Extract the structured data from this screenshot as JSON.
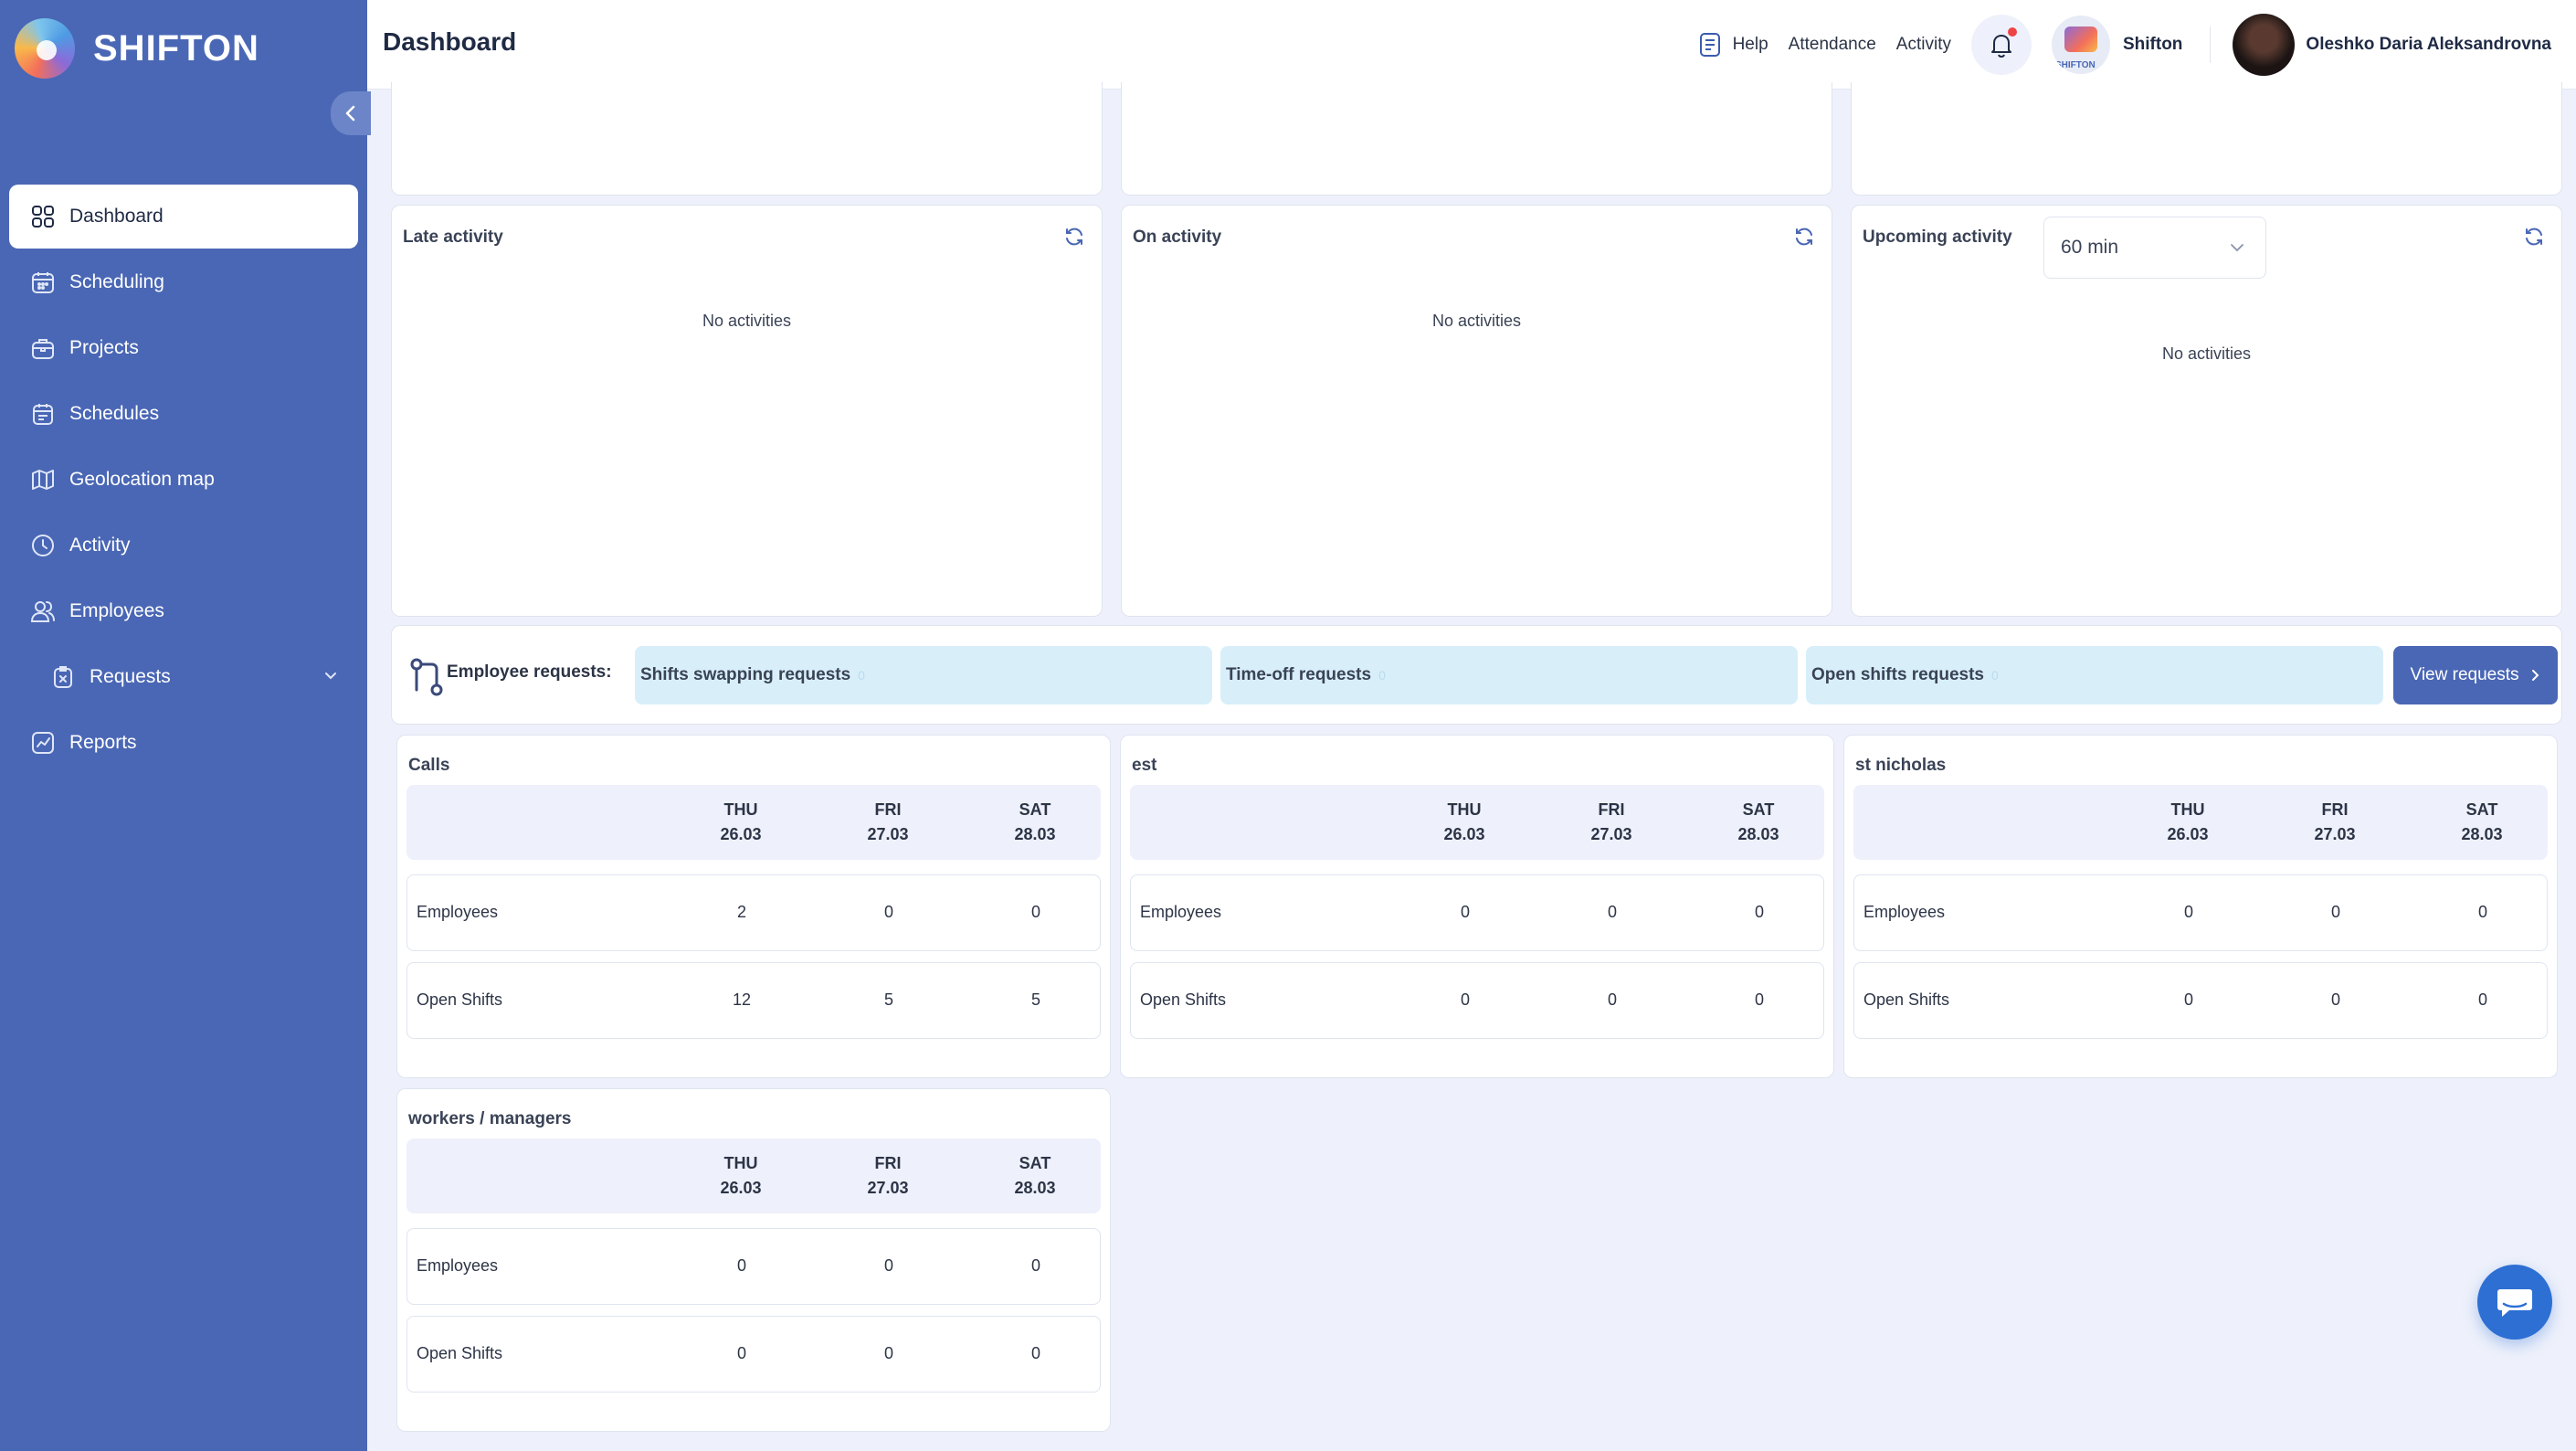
{
  "brand": {
    "name": "SHIFTON"
  },
  "sidebar": {
    "items": [
      {
        "label": "Dashboard",
        "icon": "grid-icon",
        "active": true
      },
      {
        "label": "Scheduling",
        "icon": "calendar-icon"
      },
      {
        "label": "Projects",
        "icon": "briefcase-icon"
      },
      {
        "label": "Schedules",
        "icon": "schedule-icon"
      },
      {
        "label": "Geolocation map",
        "icon": "map-icon"
      },
      {
        "label": "Activity",
        "icon": "clock-icon"
      },
      {
        "label": "Employees",
        "icon": "users-icon"
      },
      {
        "label": "Requests",
        "icon": "request-icon",
        "sub": true,
        "expandable": true
      },
      {
        "label": "Reports",
        "icon": "chart-icon"
      }
    ]
  },
  "header": {
    "title": "Dashboard",
    "help": "Help",
    "attendance": "Attendance",
    "activity": "Activity",
    "company": "Shifton",
    "company_avatar_text": "SHIFTON",
    "user": "Oleshko Daria Aleksandrovna"
  },
  "activity_cards": {
    "late": {
      "title": "Late activity",
      "empty": "No activities"
    },
    "on": {
      "title": "On activity",
      "empty": "No activities"
    },
    "upcoming": {
      "title": "Upcoming activity",
      "empty": "No activities",
      "interval": "60 min"
    }
  },
  "requests": {
    "label": "Employee requests:",
    "swap": {
      "label": "Shifts swapping requests",
      "count": "0"
    },
    "timeoff": {
      "label": "Time-off requests",
      "count": "0"
    },
    "open": {
      "label": "Open shifts requests",
      "count": "0"
    },
    "view_button": "View requests"
  },
  "days": [
    {
      "dow": "THU",
      "date": "26.03"
    },
    {
      "dow": "FRI",
      "date": "27.03"
    },
    {
      "dow": "SAT",
      "date": "28.03"
    }
  ],
  "stats": [
    {
      "title": "Calls",
      "employees": [
        "2",
        "0",
        "0"
      ],
      "open_shifts": [
        "12",
        "5",
        "5"
      ]
    },
    {
      "title": "est",
      "employees": [
        "0",
        "0",
        "0"
      ],
      "open_shifts": [
        "0",
        "0",
        "0"
      ]
    },
    {
      "title": "st nicholas",
      "employees": [
        "0",
        "0",
        "0"
      ],
      "open_shifts": [
        "0",
        "0",
        "0"
      ]
    },
    {
      "title": "workers / managers",
      "employees": [
        "0",
        "0",
        "0"
      ],
      "open_shifts": [
        "0",
        "0",
        "0"
      ]
    }
  ],
  "row_labels": {
    "employees": "Employees",
    "open_shifts": "Open Shifts"
  },
  "colors": {
    "sidebar": "#4a67b5",
    "accent": "#2d6fd3",
    "pill": "#d8effa",
    "background": "#eef1fb"
  }
}
